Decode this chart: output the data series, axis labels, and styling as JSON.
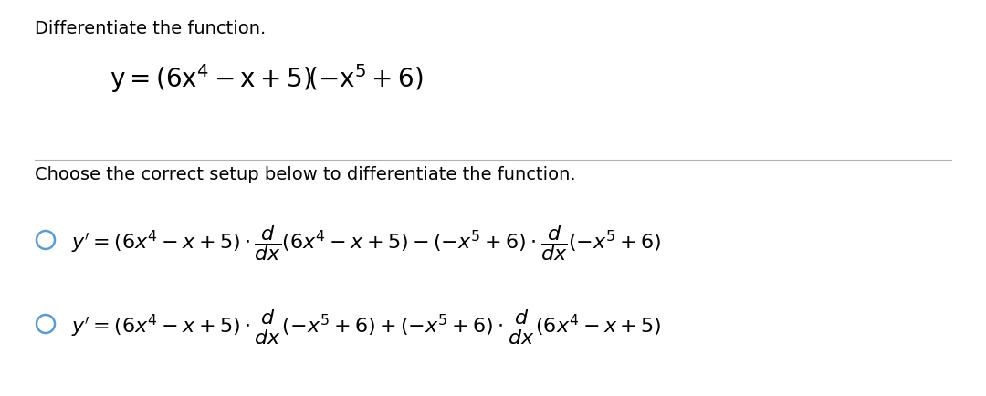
{
  "background_color": "#ffffff",
  "title_text": "Differentiate the function.",
  "subtitle_text": "Choose the correct setup below to differentiate the function.",
  "circle_color": "#5b9bd5",
  "text_color": "#000000",
  "title_fontsize": 14,
  "formula_fontsize": 20,
  "subtitle_fontsize": 14,
  "option_fontsize": 16,
  "figsize": [
    10.8,
    4.34
  ],
  "dpi": 100
}
